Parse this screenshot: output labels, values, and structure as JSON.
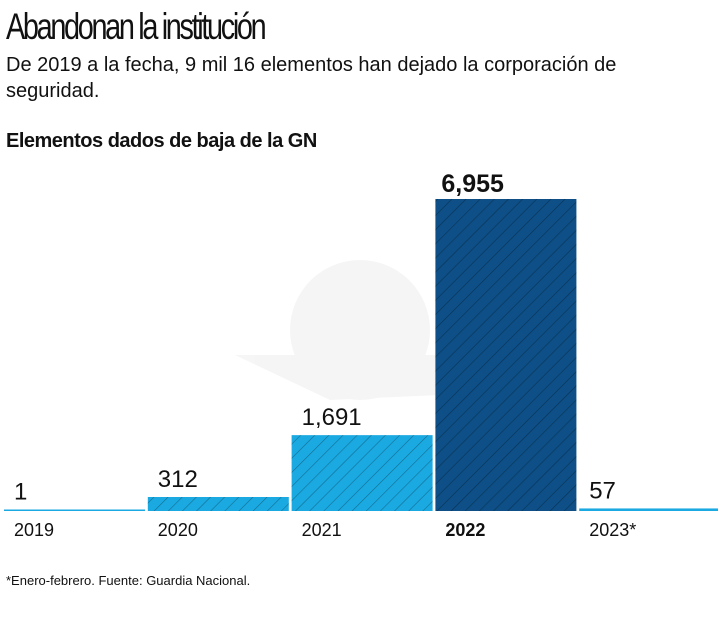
{
  "title": "Abandonan la institución",
  "subtitle": "De 2019 a la fecha, 9 mil 16 elementos han dejado la corporación de seguridad.",
  "note": "*Enero-febrero. Fuente: Guardia Nacional.",
  "chart_data": {
    "type": "bar",
    "title": "Elementos dados de baja de la GN",
    "categories": [
      "2019",
      "2020",
      "2021",
      "2022",
      "2023*"
    ],
    "values": [
      1,
      312,
      1691,
      6955,
      57
    ],
    "data_labels": [
      "1",
      "312",
      "1,691",
      "6,955",
      "57"
    ],
    "highlight": "2022",
    "xlabel": "",
    "ylabel": "",
    "ylim": [
      0,
      6955
    ],
    "grid": false,
    "colors": {
      "normal": "#1ba9e1",
      "highlight": "#0d4f86"
    }
  }
}
